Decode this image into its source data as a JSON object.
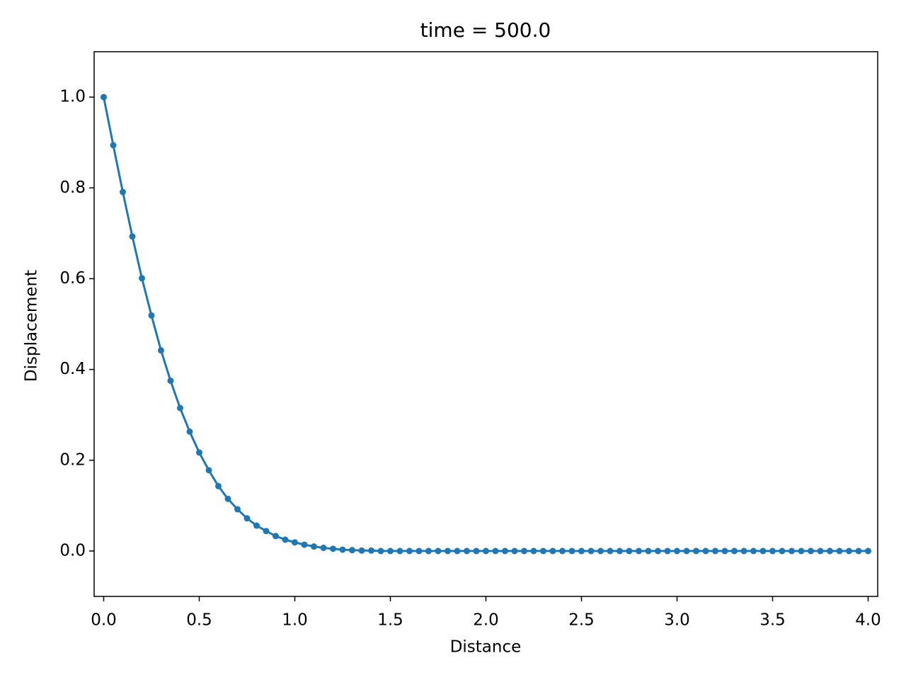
{
  "chart_data": {
    "type": "line",
    "title": "time = 500.0",
    "x_label": "Distance",
    "y_label": "Displacement",
    "x": [
      0,
      0.05,
      0.1,
      0.15,
      0.2,
      0.25,
      0.3,
      0.35,
      0.4,
      0.45,
      0.5,
      0.55,
      0.6,
      0.65,
      0.7,
      0.75,
      0.8,
      0.85,
      0.9,
      0.95,
      1.0,
      1.05,
      1.1,
      1.15,
      1.2,
      1.25,
      1.3,
      1.35,
      1.4,
      1.45,
      1.5,
      1.55,
      1.6,
      1.65,
      1.7,
      1.75,
      1.8,
      1.85,
      1.9,
      1.95,
      2.0,
      2.05,
      2.1,
      2.15,
      2.2,
      2.25,
      2.3,
      2.35,
      2.4,
      2.45,
      2.5,
      2.55,
      2.6,
      2.65,
      2.7,
      2.75,
      2.8,
      2.85,
      2.9,
      2.95,
      3.0,
      3.05,
      3.1,
      3.15,
      3.2,
      3.25,
      3.3,
      3.35,
      3.4,
      3.45,
      3.5,
      3.55,
      3.6,
      3.65,
      3.7,
      3.75,
      3.8,
      3.85,
      3.9,
      3.95,
      4.0
    ],
    "series": [
      {
        "color": "#1f77b4",
        "values": [
          1.0,
          0.894,
          0.791,
          0.693,
          0.601,
          0.519,
          0.442,
          0.375,
          0.315,
          0.263,
          0.217,
          0.178,
          0.143,
          0.115,
          0.092,
          0.072,
          0.056,
          0.044,
          0.033,
          0.025,
          0.019,
          0.014,
          0.01,
          0.007,
          0.005,
          0.003,
          0.002,
          0.001,
          0.001,
          0,
          0,
          0,
          0,
          0,
          0,
          0,
          0,
          0,
          0,
          0,
          0,
          0,
          0,
          0,
          0,
          0,
          0,
          0,
          0,
          0,
          0,
          0,
          0,
          0,
          0,
          0,
          0,
          0,
          0,
          0,
          0,
          0,
          0,
          0,
          0,
          0,
          0,
          0,
          0,
          0,
          0,
          0,
          0,
          0,
          0,
          0,
          0,
          0,
          0,
          0,
          0
        ]
      }
    ],
    "xlim": [
      -0.05,
      4.05
    ],
    "ylim": [
      -0.1,
      1.1
    ],
    "xticks": [
      {
        "value": 0,
        "label": "0.0"
      },
      {
        "value": 0.5,
        "label": "0.5"
      },
      {
        "value": 1,
        "label": "1.0"
      },
      {
        "value": 1.5,
        "label": "1.5"
      },
      {
        "value": 2,
        "label": "2.0"
      },
      {
        "value": 2.5,
        "label": "2.5"
      },
      {
        "value": 3,
        "label": "3.0"
      },
      {
        "value": 3.5,
        "label": "3.5"
      },
      {
        "value": 4,
        "label": "4.0"
      }
    ],
    "yticks": [
      {
        "value": 0,
        "label": "0.0"
      },
      {
        "value": 0.2,
        "label": "0.2"
      },
      {
        "value": 0.4,
        "label": "0.4"
      },
      {
        "value": 0.6,
        "label": "0.6"
      },
      {
        "value": 0.8,
        "label": "0.8"
      },
      {
        "value": 1,
        "label": "1.0"
      }
    ],
    "grid": false
  }
}
